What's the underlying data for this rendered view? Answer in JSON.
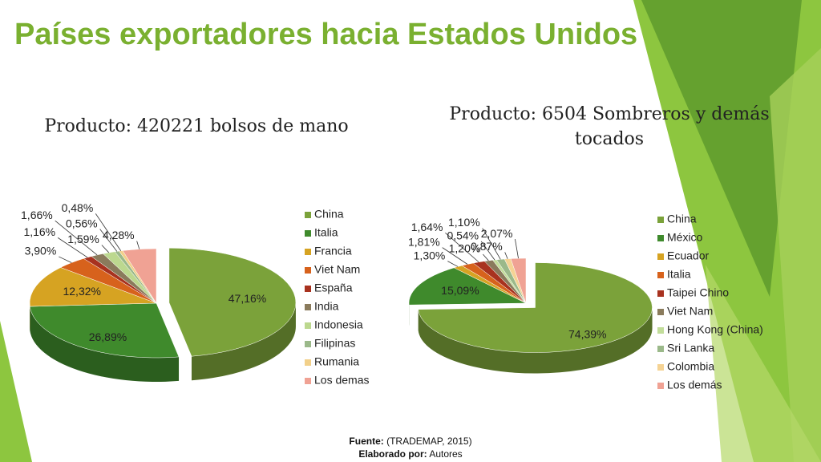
{
  "title": "Países exportadores hacia Estados Unidos",
  "chart_data": [
    {
      "type": "pie",
      "title": "Producto: 420221 bolsos de mano",
      "categories": [
        "China",
        "Italia",
        "Francia",
        "Viet Nam",
        "España",
        "India",
        "Indonesia",
        "Filipinas",
        "Rumania",
        "Los demas"
      ],
      "values": [
        47.16,
        26.89,
        12.32,
        3.9,
        1.16,
        1.66,
        1.59,
        0.56,
        0.48,
        4.28
      ],
      "value_labels": [
        "47,16%",
        "26,89%",
        "12,32%",
        "3,90%",
        "1,16%",
        "1,66%",
        "1,59%",
        "0,56%",
        "0,48%",
        "4,28%"
      ],
      "colors": [
        "#7ba23a",
        "#3f8a2c",
        "#d6a322",
        "#d7621c",
        "#a8321f",
        "#8a7b5c",
        "#bcd88f",
        "#9bb98a",
        "#f2d08a",
        "#f0a294"
      ],
      "legend": "right"
    },
    {
      "type": "pie",
      "title": "Producto: 6504 Sombreros y demás tocados",
      "categories": [
        "China",
        "México",
        "Ecuador",
        "Italia",
        "Taipei Chino",
        "Viet Nam",
        "Hong Kong (China)",
        "Sri Lanka",
        "Colombia",
        "Los demás"
      ],
      "values": [
        74.39,
        15.09,
        1.3,
        1.81,
        1.64,
        1.2,
        0.54,
        1.1,
        0.87,
        2.07
      ],
      "value_labels": [
        "74,39%",
        "15,09%",
        "1,30%",
        "1,81%",
        "1,64%",
        "1,20%",
        "0,54%",
        "1,10%",
        "0,87%",
        "2,07%"
      ],
      "colors": [
        "#7ba23a",
        "#3f8a2c",
        "#d6a322",
        "#d7621c",
        "#a8321f",
        "#8a7b5c",
        "#c2dd9a",
        "#9bb98a",
        "#f5d394",
        "#f0a294"
      ],
      "legend": "right"
    }
  ],
  "footer": {
    "source_label": "Fuente:",
    "source": "(TRADEMAP, 2015)",
    "author_label": "Elaborado por:",
    "author": "Autores"
  }
}
